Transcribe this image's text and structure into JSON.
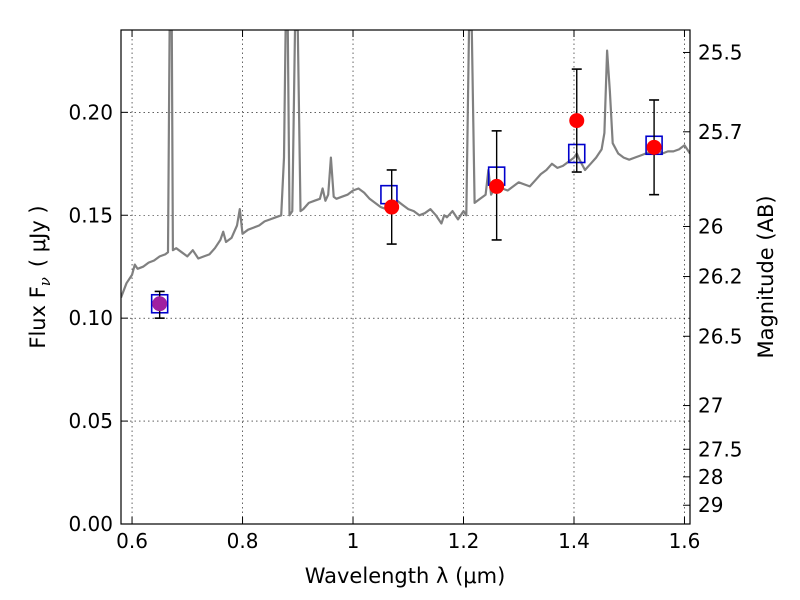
{
  "chart_data": {
    "type": "scatter",
    "title": "",
    "xlabel": "Wavelength  λ (μm)",
    "ylabel": "Flux  F",
    "ylabel_subscript": "ν",
    "ylabel_unit": "( μJy )",
    "y2label": "Magnitude (AB)",
    "xlim": [
      0.58,
      1.61
    ],
    "ylim": [
      0.0,
      0.24
    ],
    "grid": true,
    "grid_style": "dotted",
    "x_ticks": [
      0.6,
      0.8,
      1.0,
      1.2,
      1.4,
      1.6
    ],
    "x_tick_labels": [
      "0.6",
      "0.8",
      "1",
      "1.2",
      "1.4",
      "1.6"
    ],
    "y_ticks": [
      0.0,
      0.05,
      0.1,
      0.15,
      0.2
    ],
    "y_tick_labels": [
      "0.00",
      "0.05",
      "0.10",
      "0.15",
      "0.20"
    ],
    "y2_ticks": [
      {
        "label": "25.5",
        "value": 25.5
      },
      {
        "label": "25.7",
        "value": 25.7
      },
      {
        "label": "26",
        "value": 26.0
      },
      {
        "label": "26.2",
        "value": 26.2
      },
      {
        "label": "26.5",
        "value": 26.5
      },
      {
        "label": "27",
        "value": 27.0
      },
      {
        "label": "27.5",
        "value": 27.5
      },
      {
        "label": "28",
        "value": 28.0
      },
      {
        "label": "29",
        "value": 29.0
      }
    ],
    "series": [
      {
        "kind": "line",
        "color": "#808080",
        "points": [
          [
            0.58,
            0.11
          ],
          [
            0.59,
            0.117
          ],
          [
            0.6,
            0.121
          ],
          [
            0.605,
            0.126
          ],
          [
            0.61,
            0.124
          ],
          [
            0.62,
            0.125
          ],
          [
            0.63,
            0.127
          ],
          [
            0.64,
            0.128
          ],
          [
            0.65,
            0.13
          ],
          [
            0.66,
            0.131
          ],
          [
            0.665,
            0.132
          ],
          [
            0.668,
            0.24
          ],
          [
            0.672,
            0.24
          ],
          [
            0.674,
            0.133
          ],
          [
            0.68,
            0.134
          ],
          [
            0.69,
            0.132
          ],
          [
            0.7,
            0.13
          ],
          [
            0.71,
            0.133
          ],
          [
            0.72,
            0.129
          ],
          [
            0.73,
            0.13
          ],
          [
            0.74,
            0.131
          ],
          [
            0.75,
            0.134
          ],
          [
            0.76,
            0.138
          ],
          [
            0.765,
            0.142
          ],
          [
            0.77,
            0.137
          ],
          [
            0.78,
            0.139
          ],
          [
            0.79,
            0.145
          ],
          [
            0.795,
            0.153
          ],
          [
            0.8,
            0.141
          ],
          [
            0.81,
            0.143
          ],
          [
            0.82,
            0.144
          ],
          [
            0.83,
            0.145
          ],
          [
            0.84,
            0.147
          ],
          [
            0.85,
            0.148
          ],
          [
            0.86,
            0.149
          ],
          [
            0.87,
            0.15
          ],
          [
            0.875,
            0.178
          ],
          [
            0.878,
            0.24
          ],
          [
            0.882,
            0.24
          ],
          [
            0.885,
            0.15
          ],
          [
            0.89,
            0.152
          ],
          [
            0.895,
            0.24
          ],
          [
            0.9,
            0.24
          ],
          [
            0.905,
            0.152
          ],
          [
            0.91,
            0.153
          ],
          [
            0.92,
            0.156
          ],
          [
            0.93,
            0.157
          ],
          [
            0.94,
            0.158
          ],
          [
            0.945,
            0.163
          ],
          [
            0.95,
            0.157
          ],
          [
            0.955,
            0.16
          ],
          [
            0.96,
            0.178
          ],
          [
            0.965,
            0.159
          ],
          [
            0.97,
            0.158
          ],
          [
            0.98,
            0.159
          ],
          [
            0.99,
            0.16
          ],
          [
            1.0,
            0.162
          ],
          [
            1.01,
            0.163
          ],
          [
            1.02,
            0.161
          ],
          [
            1.03,
            0.158
          ],
          [
            1.04,
            0.156
          ],
          [
            1.05,
            0.154
          ],
          [
            1.06,
            0.153
          ],
          [
            1.07,
            0.155
          ],
          [
            1.08,
            0.157
          ],
          [
            1.09,
            0.155
          ],
          [
            1.1,
            0.153
          ],
          [
            1.11,
            0.152
          ],
          [
            1.12,
            0.15
          ],
          [
            1.13,
            0.151
          ],
          [
            1.14,
            0.153
          ],
          [
            1.15,
            0.15
          ],
          [
            1.16,
            0.146
          ],
          [
            1.165,
            0.15
          ],
          [
            1.17,
            0.149
          ],
          [
            1.18,
            0.152
          ],
          [
            1.19,
            0.148
          ],
          [
            1.2,
            0.152
          ],
          [
            1.205,
            0.15
          ],
          [
            1.21,
            0.24
          ],
          [
            1.215,
            0.24
          ],
          [
            1.22,
            0.156
          ],
          [
            1.23,
            0.158
          ],
          [
            1.24,
            0.16
          ],
          [
            1.245,
            0.172
          ],
          [
            1.25,
            0.16
          ],
          [
            1.26,
            0.165
          ],
          [
            1.27,
            0.163
          ],
          [
            1.28,
            0.162
          ],
          [
            1.29,
            0.164
          ],
          [
            1.3,
            0.166
          ],
          [
            1.31,
            0.165
          ],
          [
            1.32,
            0.164
          ],
          [
            1.33,
            0.167
          ],
          [
            1.34,
            0.17
          ],
          [
            1.35,
            0.172
          ],
          [
            1.36,
            0.175
          ],
          [
            1.37,
            0.173
          ],
          [
            1.38,
            0.174
          ],
          [
            1.39,
            0.176
          ],
          [
            1.4,
            0.178
          ],
          [
            1.405,
            0.18
          ],
          [
            1.41,
            0.177
          ],
          [
            1.42,
            0.172
          ],
          [
            1.43,
            0.175
          ],
          [
            1.44,
            0.178
          ],
          [
            1.45,
            0.182
          ],
          [
            1.455,
            0.19
          ],
          [
            1.46,
            0.23
          ],
          [
            1.465,
            0.21
          ],
          [
            1.47,
            0.185
          ],
          [
            1.48,
            0.18
          ],
          [
            1.49,
            0.178
          ],
          [
            1.5,
            0.177
          ],
          [
            1.51,
            0.178
          ],
          [
            1.52,
            0.179
          ],
          [
            1.53,
            0.18
          ],
          [
            1.54,
            0.181
          ],
          [
            1.55,
            0.182
          ],
          [
            1.56,
            0.18
          ],
          [
            1.57,
            0.181
          ],
          [
            1.58,
            0.181
          ],
          [
            1.59,
            0.182
          ],
          [
            1.6,
            0.184
          ],
          [
            1.61,
            0.18
          ]
        ]
      },
      {
        "kind": "open-square",
        "color": "#0000cc",
        "points": [
          [
            0.65,
            0.107
          ],
          [
            1.065,
            0.16
          ],
          [
            1.26,
            0.169
          ],
          [
            1.405,
            0.18
          ],
          [
            1.545,
            0.184
          ]
        ]
      },
      {
        "kind": "errorbar",
        "color": "#000000",
        "points": [
          {
            "x": 0.65,
            "y": 0.107,
            "lo": 0.1,
            "hi": 0.113
          },
          {
            "x": 1.07,
            "y": 0.154,
            "lo": 0.136,
            "hi": 0.172
          },
          {
            "x": 1.26,
            "y": 0.164,
            "lo": 0.138,
            "hi": 0.191
          },
          {
            "x": 1.405,
            "y": 0.196,
            "lo": 0.171,
            "hi": 0.221
          },
          {
            "x": 1.545,
            "y": 0.183,
            "lo": 0.16,
            "hi": 0.206
          }
        ]
      },
      {
        "kind": "filled-circle",
        "colors": [
          "#a020a0",
          "#ff0000",
          "#ff0000",
          "#ff0000",
          "#ff0000"
        ],
        "points": [
          [
            0.65,
            0.107
          ],
          [
            1.07,
            0.154
          ],
          [
            1.26,
            0.164
          ],
          [
            1.405,
            0.196
          ],
          [
            1.545,
            0.183
          ]
        ]
      }
    ]
  }
}
